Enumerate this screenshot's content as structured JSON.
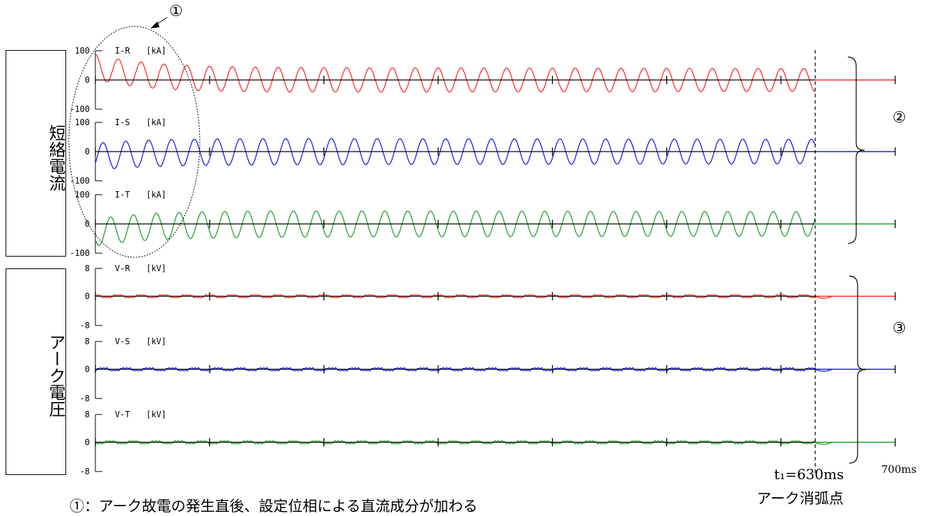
{
  "labels": {
    "current_group": "短絡電流",
    "voltage_group": "アーク電圧",
    "marker_1": "①",
    "marker_2": "②",
    "marker_3": "③",
    "t1_label": "t₁=630ms",
    "arc_extinction": "アーク消弧点",
    "end_time": "700ms",
    "footnote": "①：アーク故電の発生直後、設定位相による直流成分が加わる"
  },
  "colors": {
    "red": "#ff2a2a",
    "blue": "#1a1aee",
    "green": "#1fa12a",
    "axis": "#000000"
  },
  "chart_data": [
    {
      "type": "line",
      "title": "I-R",
      "unit": "[kA]",
      "ylim": [
        -100,
        100
      ],
      "yticks": [
        100,
        0,
        -100
      ],
      "yticklabels": [
        "100",
        "0",
        "-100"
      ],
      "color": "red",
      "phase_deg": 90,
      "dc_offset_kA": 45,
      "dc_tau_ms": 45,
      "amplitude_kA": 43,
      "frequency_hz": 50,
      "extinction_ms": 630,
      "xlim_ms": [
        0,
        700
      ]
    },
    {
      "type": "line",
      "title": "I-S",
      "unit": "[kA]",
      "ylim": [
        -100,
        100
      ],
      "yticks": [
        100,
        0,
        -100
      ],
      "yticklabels": [
        "100",
        "0",
        "-100"
      ],
      "color": "blue",
      "phase_deg": -30,
      "dc_offset_kA": -18,
      "dc_tau_ms": 45,
      "amplitude_kA": 46,
      "frequency_hz": 50,
      "extinction_ms": 630,
      "xlim_ms": [
        0,
        700
      ]
    },
    {
      "type": "line",
      "title": "I-T",
      "unit": "[kA]",
      "ylim": [
        -100,
        100
      ],
      "yticks": [
        100,
        0,
        -100
      ],
      "yticklabels": [
        "100",
        "0",
        "-100"
      ],
      "color": "green",
      "phase_deg": 210,
      "dc_offset_kA": -30,
      "dc_tau_ms": 45,
      "amplitude_kA": 46,
      "frequency_hz": 50,
      "extinction_ms": 630,
      "xlim_ms": [
        0,
        700
      ]
    },
    {
      "type": "line",
      "title": "V-R",
      "unit": "[kV]",
      "ylim": [
        -8,
        8
      ],
      "yticks": [
        8,
        0,
        -8
      ],
      "yticklabels": [
        "8",
        "0",
        "-8"
      ],
      "color": "red",
      "phase_deg": 90,
      "amplitude_kV": 0.5,
      "frequency_hz": 50,
      "extinction_ms": 630,
      "xlim_ms": [
        0,
        700
      ]
    },
    {
      "type": "line",
      "title": "V-S",
      "unit": "[kV]",
      "ylim": [
        -8,
        8
      ],
      "yticks": [
        8,
        0,
        -8
      ],
      "yticklabels": [
        "8",
        "0",
        "-8"
      ],
      "color": "blue",
      "phase_deg": -30,
      "amplitude_kV": 0.5,
      "frequency_hz": 50,
      "extinction_ms": 630,
      "xlim_ms": [
        0,
        700
      ]
    },
    {
      "type": "line",
      "title": "V-T",
      "unit": "[kV]",
      "ylim": [
        -8,
        8
      ],
      "yticks": [
        8,
        0,
        -8
      ],
      "yticklabels": [
        "8",
        "0",
        "-8"
      ],
      "color": "green",
      "phase_deg": 210,
      "amplitude_kV": 0.5,
      "frequency_hz": 50,
      "extinction_ms": 630,
      "xlim_ms": [
        0,
        700
      ]
    }
  ]
}
